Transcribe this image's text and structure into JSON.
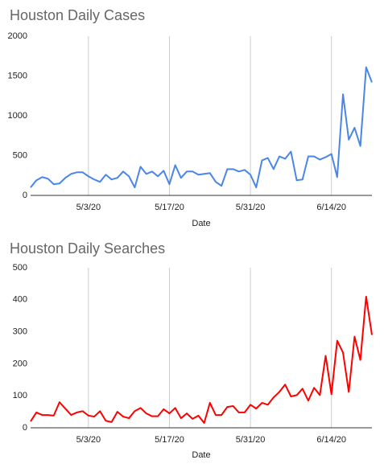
{
  "chart_data": [
    {
      "type": "line",
      "title": "Houston Daily Cases",
      "x_label": "Date",
      "categories": [
        null,
        null,
        null,
        null,
        null,
        null,
        null,
        null,
        null,
        null,
        "5/3/20",
        null,
        null,
        null,
        null,
        null,
        null,
        null,
        null,
        null,
        null,
        null,
        null,
        null,
        "5/17/20",
        null,
        null,
        null,
        null,
        null,
        null,
        null,
        null,
        null,
        null,
        null,
        null,
        null,
        "5/31/20",
        null,
        null,
        null,
        null,
        null,
        null,
        null,
        null,
        null,
        null,
        null,
        null,
        null,
        "6/14/20",
        null,
        null,
        null,
        null,
        null,
        null,
        null
      ],
      "series": [
        {
          "color": "#4a86e8",
          "values": [
            100,
            190,
            230,
            210,
            140,
            150,
            220,
            270,
            290,
            290,
            240,
            200,
            170,
            260,
            200,
            220,
            300,
            240,
            100,
            360,
            270,
            300,
            240,
            310,
            140,
            380,
            220,
            300,
            300,
            260,
            270,
            280,
            170,
            120,
            330,
            330,
            300,
            320,
            260,
            100,
            440,
            470,
            330,
            490,
            460,
            550,
            190,
            200,
            490,
            490,
            450,
            480,
            520,
            230,
            1270,
            700,
            850,
            620,
            1610,
            1420
          ]
        }
      ],
      "ylim": [
        0,
        2000
      ],
      "yticks": [
        0,
        500,
        1000,
        1500,
        2000
      ],
      "grid": true
    },
    {
      "type": "line",
      "title": "Houston Daily Searches",
      "x_label": "Date",
      "categories": [
        null,
        null,
        null,
        null,
        null,
        null,
        null,
        null,
        null,
        null,
        "5/3/20",
        null,
        null,
        null,
        null,
        null,
        null,
        null,
        null,
        null,
        null,
        null,
        null,
        null,
        "5/17/20",
        null,
        null,
        null,
        null,
        null,
        null,
        null,
        null,
        null,
        null,
        null,
        null,
        null,
        "5/31/20",
        null,
        null,
        null,
        null,
        null,
        null,
        null,
        null,
        null,
        null,
        null,
        null,
        null,
        "6/14/20",
        null,
        null,
        null,
        null,
        null,
        null,
        null
      ],
      "series": [
        {
          "color": "#ff0000",
          "values": [
            20,
            48,
            40,
            40,
            38,
            80,
            60,
            40,
            48,
            52,
            38,
            35,
            52,
            22,
            18,
            50,
            35,
            30,
            52,
            62,
            45,
            36,
            36,
            58,
            45,
            62,
            30,
            45,
            28,
            38,
            15,
            78,
            40,
            40,
            65,
            68,
            48,
            48,
            72,
            60,
            78,
            72,
            95,
            112,
            135,
            98,
            102,
            122,
            85,
            125,
            102,
            225,
            105,
            272,
            235,
            112,
            285,
            212,
            410,
            290
          ]
        }
      ],
      "ylim": [
        0,
        500
      ],
      "yticks": [
        0,
        100,
        200,
        300,
        400,
        500
      ],
      "grid": true
    }
  ]
}
